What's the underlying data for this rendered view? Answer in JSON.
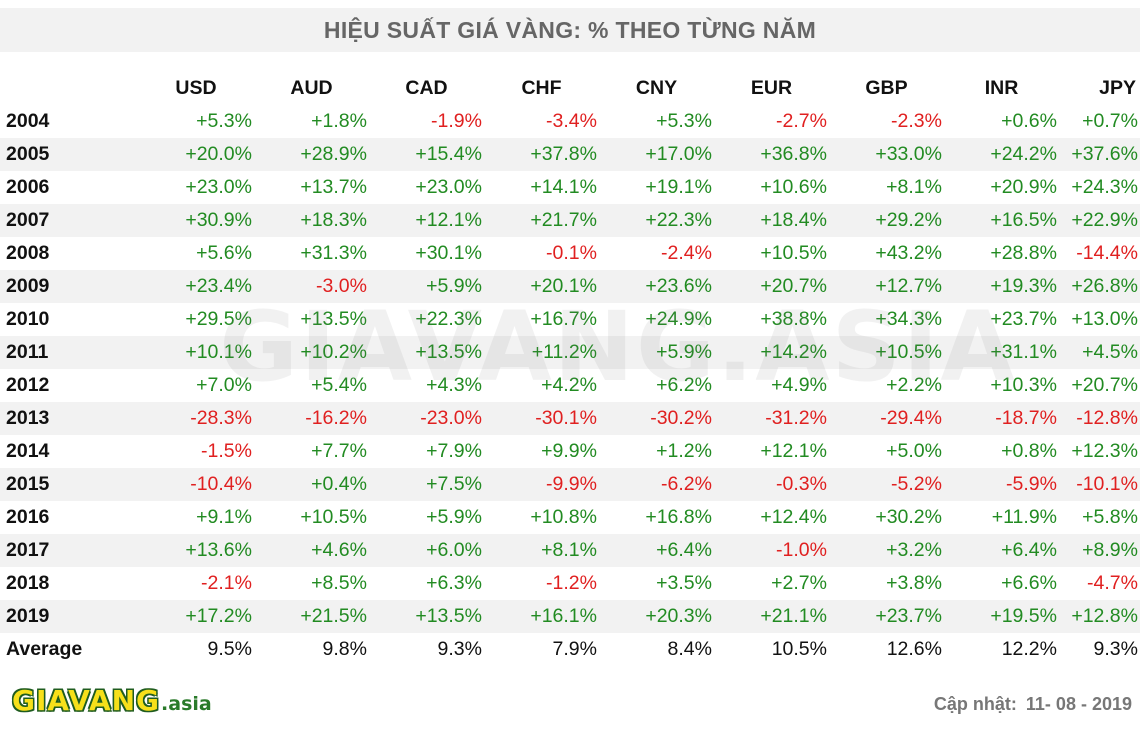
{
  "title": "HIỆU SUẤT GIÁ VÀNG: % THEO TỪNG NĂM",
  "watermark": "GIAVANG.ASIA",
  "logo": {
    "main": "GIAVANG",
    "sub": ".asia"
  },
  "updated": {
    "label": "Cập nhật:",
    "date": "11- 08 - 2019"
  },
  "colors": {
    "positive": "#228b22",
    "negative": "#e02020",
    "stripe": "#f2f2f2"
  },
  "chart_data": {
    "type": "table",
    "title": "HIỆU SUẤT GIÁ VÀNG: % THEO TỪNG NĂM",
    "columns": [
      "USD",
      "AUD",
      "CAD",
      "CHF",
      "CNY",
      "EUR",
      "GBP",
      "INR",
      "JPY"
    ],
    "rows": [
      {
        "label": "2004",
        "values": [
          "+5.3%",
          "+1.8%",
          "-1.9%",
          "-3.4%",
          "+5.3%",
          "-2.7%",
          "-2.3%",
          "+0.6%",
          "+0.7%"
        ]
      },
      {
        "label": "2005",
        "values": [
          "+20.0%",
          "+28.9%",
          "+15.4%",
          "+37.8%",
          "+17.0%",
          "+36.8%",
          "+33.0%",
          "+24.2%",
          "+37.6%"
        ]
      },
      {
        "label": "2006",
        "values": [
          "+23.0%",
          "+13.7%",
          "+23.0%",
          "+14.1%",
          "+19.1%",
          "+10.6%",
          "+8.1%",
          "+20.9%",
          "+24.3%"
        ]
      },
      {
        "label": "2007",
        "values": [
          "+30.9%",
          "+18.3%",
          "+12.1%",
          "+21.7%",
          "+22.3%",
          "+18.4%",
          "+29.2%",
          "+16.5%",
          "+22.9%"
        ]
      },
      {
        "label": "2008",
        "values": [
          "+5.6%",
          "+31.3%",
          "+30.1%",
          "-0.1%",
          "-2.4%",
          "+10.5%",
          "+43.2%",
          "+28.8%",
          "-14.4%"
        ]
      },
      {
        "label": "2009",
        "values": [
          "+23.4%",
          "-3.0%",
          "+5.9%",
          "+20.1%",
          "+23.6%",
          "+20.7%",
          "+12.7%",
          "+19.3%",
          "+26.8%"
        ]
      },
      {
        "label": "2010",
        "values": [
          "+29.5%",
          "+13.5%",
          "+22.3%",
          "+16.7%",
          "+24.9%",
          "+38.8%",
          "+34.3%",
          "+23.7%",
          "+13.0%"
        ]
      },
      {
        "label": "2011",
        "values": [
          "+10.1%",
          "+10.2%",
          "+13.5%",
          "+11.2%",
          "+5.9%",
          "+14.2%",
          "+10.5%",
          "+31.1%",
          "+4.5%"
        ]
      },
      {
        "label": "2012",
        "values": [
          "+7.0%",
          "+5.4%",
          "+4.3%",
          "+4.2%",
          "+6.2%",
          "+4.9%",
          "+2.2%",
          "+10.3%",
          "+20.7%"
        ]
      },
      {
        "label": "2013",
        "values": [
          "-28.3%",
          "-16.2%",
          "-23.0%",
          "-30.1%",
          "-30.2%",
          "-31.2%",
          "-29.4%",
          "-18.7%",
          "-12.8%"
        ]
      },
      {
        "label": "2014",
        "values": [
          "-1.5%",
          "+7.7%",
          "+7.9%",
          "+9.9%",
          "+1.2%",
          "+12.1%",
          "+5.0%",
          "+0.8%",
          "+12.3%"
        ]
      },
      {
        "label": "2015",
        "values": [
          "-10.4%",
          "+0.4%",
          "+7.5%",
          "-9.9%",
          "-6.2%",
          "-0.3%",
          "-5.2%",
          "-5.9%",
          "-10.1%"
        ]
      },
      {
        "label": "2016",
        "values": [
          "+9.1%",
          "+10.5%",
          "+5.9%",
          "+10.8%",
          "+16.8%",
          "+12.4%",
          "+30.2%",
          "+11.9%",
          "+5.8%"
        ]
      },
      {
        "label": "2017",
        "values": [
          "+13.6%",
          "+4.6%",
          "+6.0%",
          "+8.1%",
          "+6.4%",
          "-1.0%",
          "+3.2%",
          "+6.4%",
          "+8.9%"
        ]
      },
      {
        "label": "2018",
        "values": [
          "-2.1%",
          "+8.5%",
          "+6.3%",
          "-1.2%",
          "+3.5%",
          "+2.7%",
          "+3.8%",
          "+6.6%",
          "-4.7%"
        ]
      },
      {
        "label": "2019",
        "values": [
          "+17.2%",
          "+21.5%",
          "+13.5%",
          "+16.1%",
          "+20.3%",
          "+21.1%",
          "+23.7%",
          "+19.5%",
          "+12.8%"
        ]
      }
    ],
    "average": {
      "label": "Average",
      "values": [
        "9.5%",
        "9.8%",
        "9.3%",
        "7.9%",
        "8.4%",
        "10.5%",
        "12.6%",
        "12.2%",
        "9.3%"
      ]
    }
  }
}
